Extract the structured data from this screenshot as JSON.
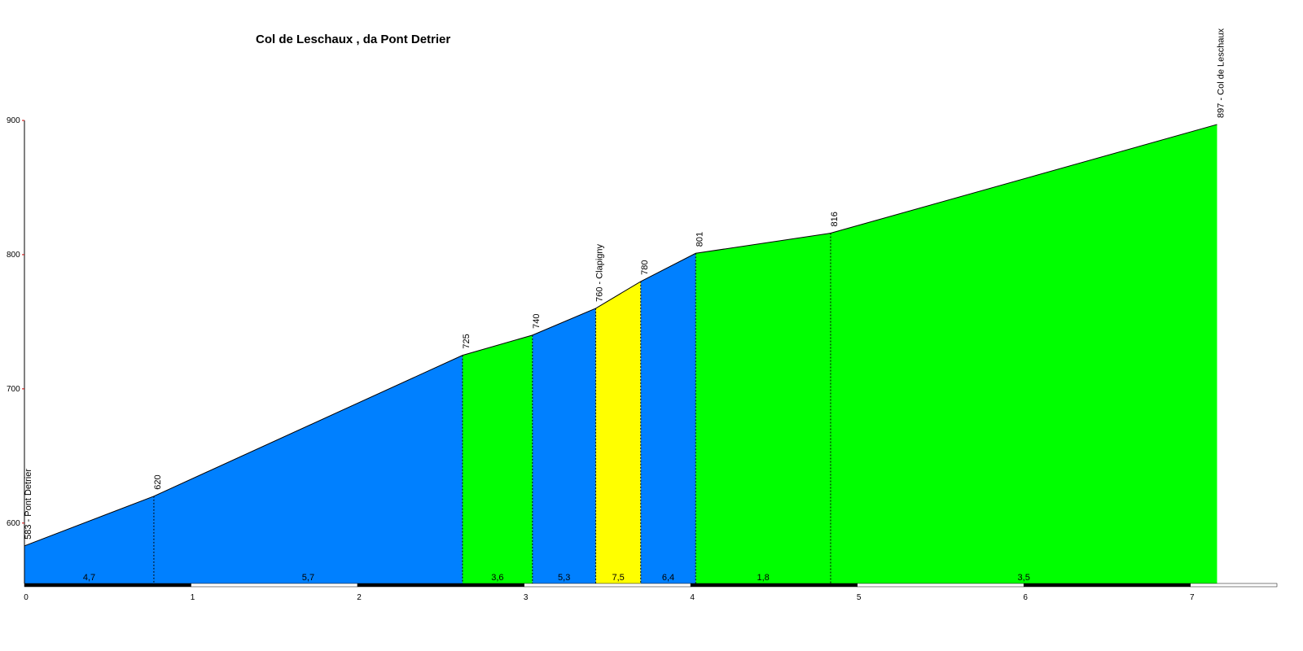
{
  "chart_data": {
    "type": "area",
    "title": "Col de Leschaux , da Pont Detrier",
    "x": [
      0,
      0.777,
      2.63,
      3.05,
      3.43,
      3.7,
      4.03,
      4.84,
      7.16
    ],
    "values": [
      583,
      620,
      725,
      740,
      760,
      780,
      801,
      816,
      897
    ],
    "value_labels": [
      "583 - Pont Detrier",
      "620",
      "725",
      "740",
      "760 - Clapigny",
      "780",
      "801",
      "816",
      "897 - Col de Leschaux"
    ],
    "gradients": [
      4.7,
      5.7,
      3.6,
      5.3,
      7.5,
      6.4,
      1.8,
      3.5
    ],
    "gradient_labels": [
      "4,7",
      "5,7",
      "3,6",
      "5,3",
      "7,5",
      "6,4",
      "1,8",
      "3,5"
    ],
    "segment_colors": [
      "#0080ff",
      "#0080ff",
      "#00ff00",
      "#0080ff",
      "#ffff00",
      "#0080ff",
      "#00ff00",
      "#00ff00"
    ],
    "xlim": [
      0,
      7.5
    ],
    "xticks": [
      0,
      1,
      2,
      3,
      4,
      5,
      6,
      7
    ],
    "ylim": [
      555,
      900
    ],
    "yticks": [
      600,
      700,
      800,
      900
    ]
  }
}
